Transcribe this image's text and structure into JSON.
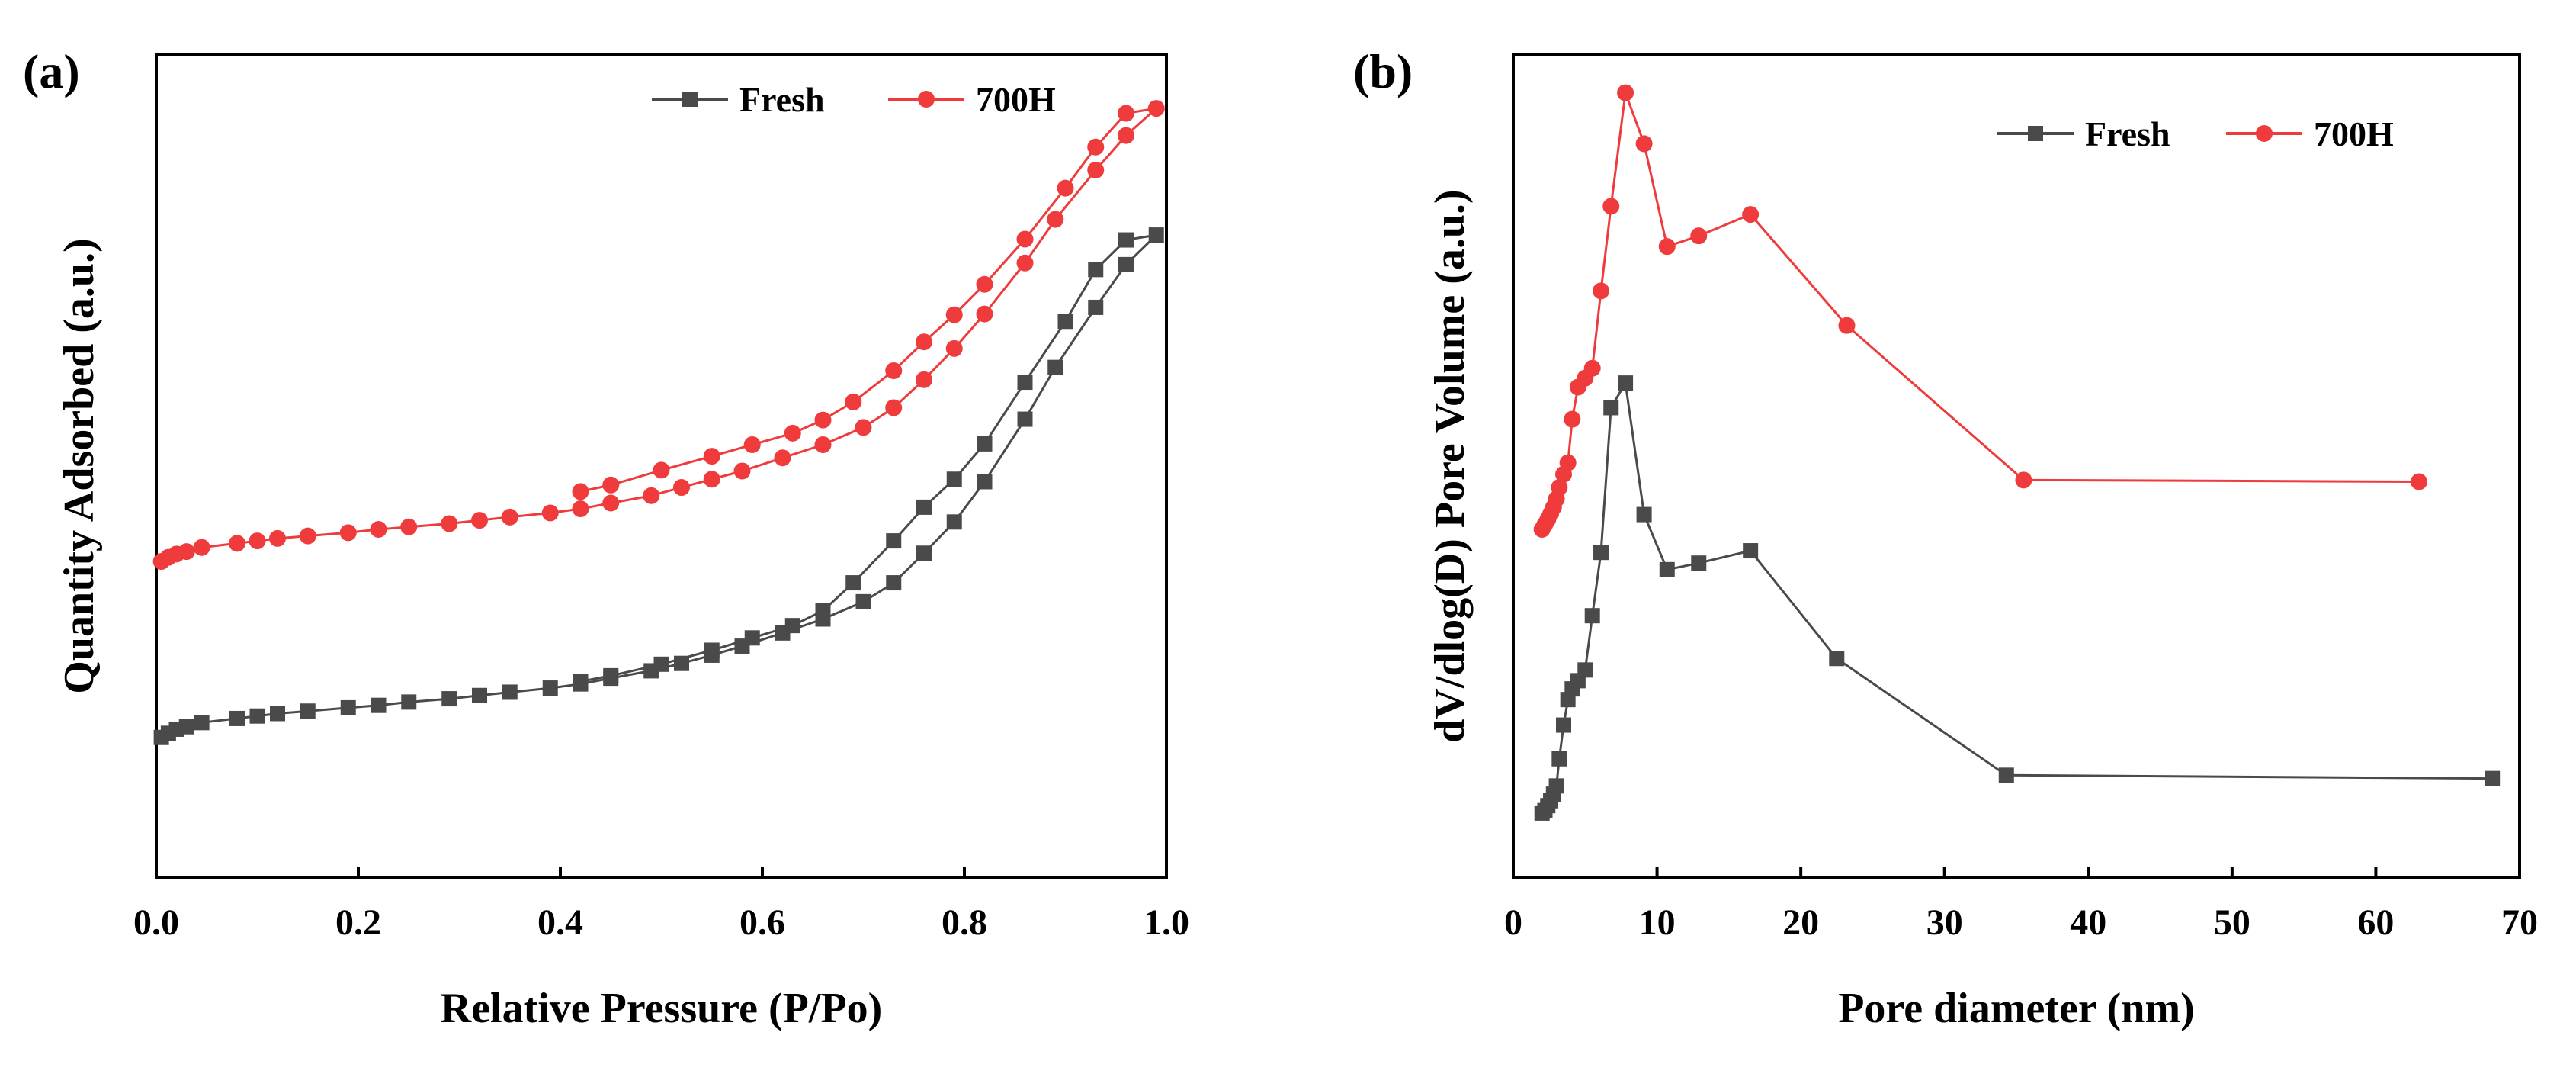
{
  "chart_data": [
    {
      "type": "line",
      "panel_label": "(a)",
      "title": "",
      "xlabel": "Relative Pressure (P/Po)",
      "ylabel": "Quantity Adsorbed (a.u.)",
      "xlim": [
        0.0,
        1.0
      ],
      "ylim": [
        0,
        100
      ],
      "xticks": [
        "0.0",
        "0.2",
        "0.4",
        "0.6",
        "0.8",
        "1.0"
      ],
      "xtick_values": [
        0.0,
        0.2,
        0.4,
        0.6,
        0.8,
        1.0
      ],
      "y_tick_labels": false,
      "grid": false,
      "legend_position": "top-right",
      "series": [
        {
          "name": "Fresh",
          "color": "#4a4a4a",
          "marker": "square",
          "x": [
            0.005,
            0.012,
            0.02,
            0.03,
            0.045,
            0.08,
            0.1,
            0.12,
            0.15,
            0.19,
            0.22,
            0.25,
            0.29,
            0.32,
            0.35,
            0.39,
            0.42,
            0.45,
            0.49,
            0.52,
            0.55,
            0.58,
            0.62,
            0.66,
            0.7,
            0.73,
            0.76,
            0.79,
            0.82,
            0.86,
            0.89,
            0.93,
            0.96,
            0.99,
            0.96,
            0.93,
            0.9,
            0.86,
            0.82,
            0.79,
            0.76,
            0.73,
            0.69,
            0.66,
            0.63,
            0.59,
            0.55,
            0.5,
            0.45,
            0.42
          ],
          "y": [
            17.0,
            17.5,
            18.0,
            18.3,
            18.8,
            19.3,
            19.6,
            19.9,
            20.2,
            20.6,
            20.9,
            21.3,
            21.7,
            22.1,
            22.5,
            23.0,
            23.5,
            24.2,
            25.1,
            26.0,
            27.0,
            28.1,
            29.7,
            31.4,
            33.5,
            35.8,
            39.4,
            43.2,
            48.1,
            55.7,
            62.0,
            69.3,
            74.5,
            78.1,
            77.5,
            73.9,
            67.6,
            60.2,
            52.7,
            48.4,
            45.0,
            40.9,
            35.8,
            32.4,
            30.6,
            29.1,
            27.6,
            25.9,
            24.5,
            23.8
          ]
        },
        {
          "name": "700H",
          "color": "#ef3b3b",
          "marker": "circle",
          "x": [
            0.005,
            0.012,
            0.02,
            0.03,
            0.045,
            0.08,
            0.1,
            0.12,
            0.15,
            0.19,
            0.22,
            0.25,
            0.29,
            0.32,
            0.35,
            0.39,
            0.42,
            0.45,
            0.49,
            0.52,
            0.55,
            0.58,
            0.62,
            0.66,
            0.7,
            0.73,
            0.76,
            0.79,
            0.82,
            0.86,
            0.89,
            0.93,
            0.96,
            0.99,
            0.96,
            0.93,
            0.9,
            0.86,
            0.82,
            0.79,
            0.76,
            0.73,
            0.69,
            0.66,
            0.63,
            0.59,
            0.55,
            0.5,
            0.45,
            0.42
          ],
          "y": [
            38.4,
            38.9,
            39.3,
            39.6,
            40.1,
            40.6,
            40.9,
            41.2,
            41.5,
            41.9,
            42.3,
            42.6,
            43.0,
            43.4,
            43.8,
            44.3,
            44.8,
            45.5,
            46.4,
            47.4,
            48.4,
            49.4,
            51.0,
            52.6,
            54.7,
            57.1,
            60.5,
            64.3,
            68.5,
            74.7,
            80.0,
            86.0,
            90.2,
            93.5,
            92.9,
            88.8,
            83.8,
            77.6,
            72.1,
            68.4,
            65.1,
            61.6,
            57.8,
            55.6,
            54.0,
            52.6,
            51.2,
            49.5,
            47.7,
            46.9
          ]
        }
      ]
    },
    {
      "type": "line",
      "panel_label": "(b)",
      "title": "",
      "xlabel": "Pore diameter (nm)",
      "ylabel": "dV/dlog(D) Pore Volume (a.u.)",
      "xlim": [
        0,
        70
      ],
      "ylim": [
        0,
        100
      ],
      "xticks": [
        "0",
        "10",
        "20",
        "30",
        "40",
        "50",
        "60",
        "70"
      ],
      "xtick_values": [
        0,
        10,
        20,
        30,
        40,
        50,
        60,
        70
      ],
      "y_tick_labels": false,
      "grid": false,
      "legend_position": "top-right",
      "series": [
        {
          "name": "Fresh",
          "color": "#4a4a4a",
          "marker": "square",
          "x": [
            2.0,
            2.2,
            2.4,
            2.6,
            2.8,
            3.0,
            3.2,
            3.5,
            3.8,
            4.1,
            4.5,
            5.0,
            5.5,
            6.1,
            6.8,
            7.8,
            9.1,
            10.7,
            12.9,
            16.5,
            22.5,
            34.3,
            68.1
          ],
          "y": [
            7.8,
            8.1,
            8.7,
            9.3,
            10.1,
            11.1,
            14.4,
            18.5,
            21.6,
            22.9,
            23.9,
            25.2,
            31.8,
            39.5,
            57.1,
            60.1,
            44.1,
            37.4,
            38.2,
            39.7,
            26.6,
            12.4,
            12.0
          ]
        },
        {
          "name": "700H",
          "color": "#ef3b3b",
          "marker": "circle",
          "x": [
            2.0,
            2.2,
            2.4,
            2.6,
            2.8,
            3.0,
            3.2,
            3.5,
            3.8,
            4.1,
            4.5,
            5.0,
            5.5,
            6.1,
            6.8,
            7.8,
            9.1,
            10.7,
            12.9,
            16.5,
            23.2,
            35.5,
            63.0
          ],
          "y": [
            42.3,
            42.9,
            43.5,
            44.2,
            45.0,
            46.0,
            47.4,
            49.0,
            50.4,
            55.7,
            59.6,
            60.7,
            61.9,
            71.3,
            81.6,
            95.4,
            89.2,
            76.7,
            78.0,
            80.6,
            67.1,
            48.3,
            48.1
          ]
        }
      ]
    }
  ]
}
